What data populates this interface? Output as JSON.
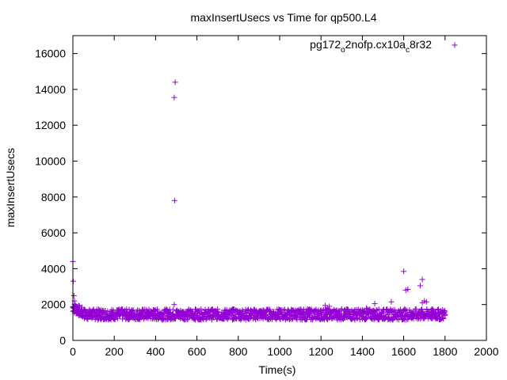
{
  "chart_data": {
    "type": "scatter",
    "title": "maxInsertUsecs vs Time for qp500.L4",
    "xlabel": "Time(s)",
    "ylabel": "maxInsertUsecs",
    "xlim": [
      0,
      2000
    ],
    "ylim": [
      0,
      17000
    ],
    "x_ticks": [
      0,
      200,
      400,
      600,
      800,
      1000,
      1200,
      1400,
      1600,
      1800,
      2000
    ],
    "y_ticks": [
      0,
      2000,
      4000,
      6000,
      8000,
      10000,
      12000,
      14000,
      16000
    ],
    "grid": false,
    "legend_position": "top-right",
    "series": [
      {
        "name": "pg172_o2nofp.cx10a_c8r32",
        "legend_main": "pg172",
        "legend_sub1": "o",
        "legend_mid": "2nofp.cx10a",
        "legend_sub2": "c",
        "legend_end": "8r32",
        "color": "#9400d3",
        "marker": "plus",
        "points": [
          [
            0,
            4400
          ],
          [
            2,
            3300
          ],
          [
            5,
            2500
          ],
          [
            8,
            2200
          ],
          [
            10,
            2000
          ],
          [
            15,
            1900
          ],
          [
            20,
            1800
          ],
          [
            25,
            1700
          ],
          [
            30,
            1650
          ],
          [
            40,
            1600
          ],
          [
            50,
            1550
          ],
          [
            490,
            13550
          ],
          [
            495,
            14400
          ],
          [
            492,
            7800
          ],
          [
            490,
            2000
          ],
          [
            1220,
            1950
          ],
          [
            1240,
            1900
          ],
          [
            1300,
            1750
          ],
          [
            1420,
            1800
          ],
          [
            1460,
            2050
          ],
          [
            1540,
            2150
          ],
          [
            1600,
            3850
          ],
          [
            1610,
            2800
          ],
          [
            1620,
            2850
          ],
          [
            1680,
            3050
          ],
          [
            1690,
            3400
          ],
          [
            1700,
            2200
          ],
          [
            1690,
            2100
          ],
          [
            1710,
            2150
          ]
        ]
      }
    ],
    "band": {
      "x_start": 0,
      "x_end": 1800,
      "step": 4,
      "center": 1450,
      "spread": 300,
      "early_boost": 400
    }
  }
}
